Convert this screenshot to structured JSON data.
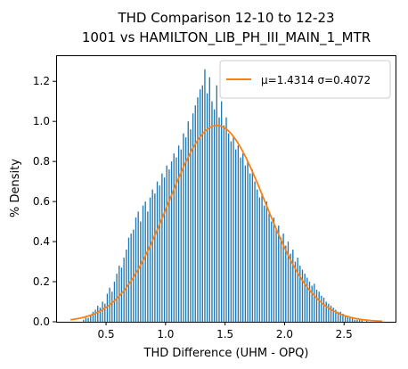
{
  "chart_data": {
    "type": "bar",
    "title_line1": "THD Comparison 12-10 to 12-23",
    "title_line2": "1001 vs HAMILTON_LIB_PH_III_MAIN_1_MTR",
    "xlabel": "THD Difference  (UHM - OPQ)",
    "ylabel": "% Density",
    "xlim": [
      0.08,
      2.94
    ],
    "ylim": [
      0.0,
      1.33
    ],
    "x_ticks": [
      "0.5",
      "1.0",
      "1.5",
      "2.0",
      "2.5"
    ],
    "x_tick_values": [
      0.5,
      1.0,
      1.5,
      2.0,
      2.5
    ],
    "y_ticks": [
      "0.0",
      "0.2",
      "0.4",
      "0.6",
      "0.8",
      "1.0",
      "1.2"
    ],
    "y_tick_values": [
      0.0,
      0.2,
      0.4,
      0.6,
      0.8,
      1.0,
      1.2
    ],
    "grid": false,
    "legend_position": "top-right",
    "histogram": {
      "name": "",
      "color": "#1f77b4",
      "bin_width": 0.01,
      "bins_x": [
        0.31,
        0.33,
        0.35,
        0.37,
        0.39,
        0.41,
        0.43,
        0.45,
        0.47,
        0.49,
        0.51,
        0.53,
        0.55,
        0.57,
        0.59,
        0.61,
        0.63,
        0.65,
        0.67,
        0.69,
        0.71,
        0.73,
        0.75,
        0.77,
        0.79,
        0.81,
        0.83,
        0.85,
        0.87,
        0.89,
        0.91,
        0.93,
        0.95,
        0.97,
        0.99,
        1.01,
        1.03,
        1.05,
        1.07,
        1.09,
        1.11,
        1.13,
        1.15,
        1.17,
        1.19,
        1.21,
        1.23,
        1.25,
        1.27,
        1.29,
        1.31,
        1.33,
        1.35,
        1.37,
        1.39,
        1.41,
        1.43,
        1.45,
        1.47,
        1.49,
        1.51,
        1.53,
        1.55,
        1.57,
        1.59,
        1.61,
        1.63,
        1.65,
        1.67,
        1.69,
        1.71,
        1.73,
        1.75,
        1.77,
        1.79,
        1.81,
        1.83,
        1.85,
        1.87,
        1.89,
        1.91,
        1.93,
        1.95,
        1.97,
        1.99,
        2.01,
        2.03,
        2.05,
        2.07,
        2.09,
        2.11,
        2.13,
        2.15,
        2.17,
        2.19,
        2.21,
        2.23,
        2.25,
        2.27,
        2.29,
        2.31,
        2.33,
        2.35,
        2.37,
        2.39,
        2.41,
        2.43,
        2.45,
        2.47,
        2.49,
        2.51,
        2.53,
        2.55,
        2.57,
        2.59,
        2.61,
        2.63,
        2.65,
        2.67,
        2.69
      ],
      "values": [
        0.01,
        0.02,
        0.02,
        0.03,
        0.05,
        0.06,
        0.08,
        0.07,
        0.1,
        0.09,
        0.14,
        0.17,
        0.15,
        0.2,
        0.24,
        0.28,
        0.27,
        0.32,
        0.36,
        0.42,
        0.44,
        0.46,
        0.52,
        0.55,
        0.5,
        0.58,
        0.6,
        0.55,
        0.62,
        0.66,
        0.64,
        0.7,
        0.68,
        0.74,
        0.72,
        0.78,
        0.76,
        0.8,
        0.84,
        0.82,
        0.88,
        0.86,
        0.94,
        0.92,
        1.0,
        0.96,
        1.04,
        1.08,
        1.12,
        1.16,
        1.18,
        1.26,
        1.14,
        1.22,
        1.1,
        1.06,
        1.18,
        1.02,
        1.1,
        0.98,
        1.02,
        0.94,
        0.9,
        0.92,
        0.86,
        0.88,
        0.82,
        0.84,
        0.78,
        0.8,
        0.74,
        0.76,
        0.7,
        0.66,
        0.62,
        0.64,
        0.58,
        0.6,
        0.54,
        0.5,
        0.52,
        0.46,
        0.48,
        0.42,
        0.44,
        0.38,
        0.4,
        0.34,
        0.36,
        0.3,
        0.32,
        0.28,
        0.26,
        0.24,
        0.22,
        0.2,
        0.18,
        0.19,
        0.16,
        0.15,
        0.13,
        0.12,
        0.1,
        0.09,
        0.08,
        0.07,
        0.06,
        0.05,
        0.05,
        0.04,
        0.03,
        0.03,
        0.02,
        0.02,
        0.01,
        0.01,
        0.01,
        0.01,
        0.0,
        0.01
      ]
    },
    "fit_curve": {
      "type": "line",
      "name": "$\\mu$=1.4314 $\\sigma$=0.4072",
      "legend_text": "μ=1.4314 σ=0.4072",
      "color": "#ff7f0e",
      "mu": 1.4314,
      "sigma": 0.4072,
      "x_start": 0.2,
      "x_end": 2.82
    }
  }
}
